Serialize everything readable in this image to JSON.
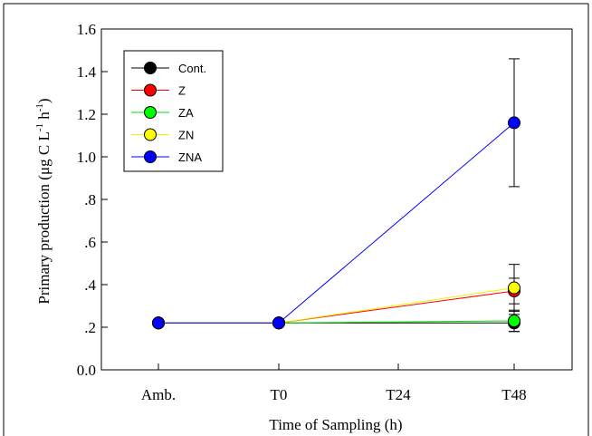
{
  "chart_data": {
    "type": "line",
    "categories": [
      "Amb.",
      "T0",
      "T24",
      "T48"
    ],
    "xlabel": "Time of Sampling (h)",
    "ylabel": {
      "prefix": "Primary production (",
      "mu": "μ",
      "mid": "g C L",
      "sup1": "-1",
      "mid2": " h",
      "sup2": "-1",
      "suffix": ")"
    },
    "ylim": [
      0,
      1.6
    ],
    "yticks": [
      {
        "value": 0.0,
        "label": "0.0"
      },
      {
        "value": 0.2,
        "label": ".2"
      },
      {
        "value": 0.4,
        "label": ".4"
      },
      {
        "value": 0.6,
        "label": ".6"
      },
      {
        "value": 0.8,
        "label": ".8"
      },
      {
        "value": 1.0,
        "label": "1.0"
      },
      {
        "value": 1.2,
        "label": "1.2"
      },
      {
        "value": 1.4,
        "label": "1.4"
      },
      {
        "value": 1.6,
        "label": "1.6"
      }
    ],
    "grid": false,
    "legend_position": "top-left",
    "series": [
      {
        "name": "Cont.",
        "color": "#000000",
        "marker_color": "#000000",
        "values": [
          0.22,
          0.22,
          null,
          0.22
        ],
        "errors": [
          0,
          0,
          null,
          0.04
        ]
      },
      {
        "name": "Z",
        "color": "#ff0000",
        "marker_color": "#ff0000",
        "values": [
          0.22,
          0.22,
          null,
          0.37
        ],
        "errors": [
          0,
          0,
          null,
          0.06
        ]
      },
      {
        "name": "ZA",
        "color": "#00dd00",
        "marker_color": "#00ff00",
        "values": [
          0.22,
          0.22,
          null,
          0.23
        ],
        "errors": [
          0,
          0,
          null,
          0.05
        ]
      },
      {
        "name": "ZN",
        "color": "#f0f000",
        "marker_color": "#ffff00",
        "values": [
          0.22,
          0.22,
          null,
          0.385
        ],
        "errors": [
          0,
          0,
          null,
          0.11
        ]
      },
      {
        "name": "ZNA",
        "color": "#0000ff",
        "marker_color": "#0000ff",
        "values": [
          0.22,
          0.22,
          null,
          1.16
        ],
        "errors": [
          0,
          0,
          null,
          0.3
        ]
      }
    ]
  }
}
